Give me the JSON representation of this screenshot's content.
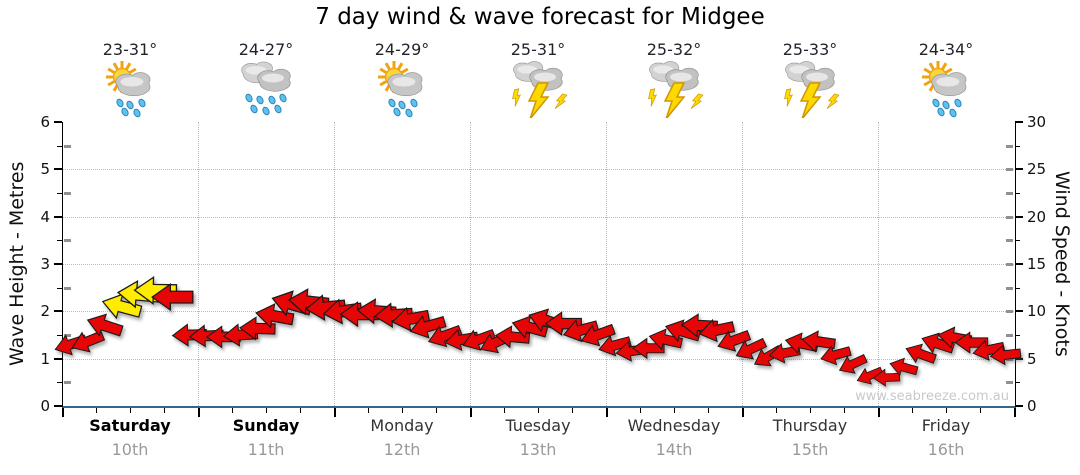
{
  "page": {
    "title": "7 day wind & wave forecast for Midgee",
    "watermark": "www.seabreeze.com.au"
  },
  "axes": {
    "left": {
      "label": "Wave Height - Metres",
      "ticks": [
        0,
        1,
        2,
        3,
        4,
        5,
        6
      ],
      "range": [
        0,
        6
      ]
    },
    "right": {
      "label": "Wind Speed - Knots",
      "ticks": [
        0,
        5,
        10,
        15,
        20,
        25,
        30
      ],
      "range": [
        0,
        30
      ]
    }
  },
  "days": [
    {
      "name": "Saturday",
      "date": "10th",
      "temp": "23-31°",
      "icon": "sun-cloud-rain",
      "weekend": true
    },
    {
      "name": "Sunday",
      "date": "11th",
      "temp": "24-27°",
      "icon": "clouds-rain",
      "weekend": true
    },
    {
      "name": "Monday",
      "date": "12th",
      "temp": "24-29°",
      "icon": "sun-cloud-rain",
      "weekend": false
    },
    {
      "name": "Tuesday",
      "date": "13th",
      "temp": "25-31°",
      "icon": "storm",
      "weekend": false
    },
    {
      "name": "Wednesday",
      "date": "14th",
      "temp": "25-32°",
      "icon": "storm",
      "weekend": false
    },
    {
      "name": "Thursday",
      "date": "15th",
      "temp": "25-33°",
      "icon": "storm",
      "weekend": false
    },
    {
      "name": "Friday",
      "date": "16th",
      "temp": "24-34°",
      "icon": "sun-cloud-rain",
      "weekend": false
    }
  ],
  "chart_data": {
    "type": "wind-arrows",
    "note": "3-hourly wind arrows, 8 per day. knots read on right axis; dir_deg is screen rotation of a right-pointing arrow (180 = pointing left/west, >180 tilted up, <180 tilted down).",
    "ylim_metres": [
      0,
      6
    ],
    "ylim_knots": [
      0,
      30
    ],
    "grid": {
      "horizontal_at_metres": [
        1,
        2,
        3,
        4,
        5
      ],
      "vertical_at_day_boundaries": true
    },
    "series": [
      {
        "day": "Saturday",
        "knots": [
          6.5,
          6.8,
          8.5,
          10.5,
          11.8,
          12.2,
          11.5,
          7.5
        ],
        "dir_deg": [
          162,
          158,
          198,
          195,
          185,
          181,
          180,
          178
        ],
        "colors": [
          "red",
          "red",
          "red",
          "yellow",
          "yellow",
          "yellow",
          "red",
          "red"
        ]
      },
      {
        "day": "Sunday",
        "knots": [
          7.4,
          7.3,
          7.5,
          8.2,
          9.5,
          10.8,
          11.0,
          10.4
        ],
        "dir_deg": [
          177,
          180,
          176,
          182,
          190,
          196,
          186,
          175
        ],
        "colors": [
          "red",
          "red",
          "red",
          "red",
          "red",
          "red",
          "red",
          "red"
        ]
      },
      {
        "day": "Monday",
        "knots": [
          10.0,
          9.7,
          10.0,
          9.6,
          9.2,
          8.4,
          7.4,
          7.0
        ],
        "dir_deg": [
          172,
          180,
          184,
          176,
          170,
          164,
          160,
          170
        ],
        "colors": [
          "red",
          "red",
          "red",
          "red",
          "red",
          "red",
          "red",
          "red"
        ]
      },
      {
        "day": "Tuesday",
        "knots": [
          7.0,
          6.7,
          7.3,
          8.3,
          9.0,
          8.7,
          8.0,
          7.5
        ],
        "dir_deg": [
          160,
          155,
          185,
          195,
          198,
          180,
          165,
          160
        ],
        "colors": [
          "red",
          "red",
          "red",
          "red",
          "red",
          "red",
          "red",
          "red"
        ]
      },
      {
        "day": "Wednesday",
        "knots": [
          6.4,
          5.8,
          6.1,
          7.0,
          7.9,
          8.5,
          8.0,
          6.9
        ],
        "dir_deg": [
          165,
          172,
          180,
          192,
          196,
          183,
          168,
          160
        ],
        "colors": [
          "red",
          "red",
          "red",
          "red",
          "red",
          "red",
          "red",
          "red"
        ]
      },
      {
        "day": "Thursday",
        "knots": [
          6.0,
          5.2,
          5.6,
          6.6,
          6.8,
          5.4,
          4.4,
          3.2
        ],
        "dir_deg": [
          155,
          150,
          170,
          192,
          188,
          165,
          155,
          158
        ],
        "colors": [
          "red",
          "red",
          "red",
          "red",
          "red",
          "red",
          "red",
          "red"
        ]
      },
      {
        "day": "Friday",
        "knots": [
          3.0,
          4.1,
          5.5,
          6.6,
          7.2,
          6.7,
          5.9,
          5.4
        ],
        "dir_deg": [
          178,
          195,
          200,
          198,
          190,
          180,
          168,
          174
        ],
        "colors": [
          "red",
          "red",
          "red",
          "red",
          "red",
          "red",
          "red",
          "red"
        ]
      }
    ],
    "palette": {
      "arrow_red": "#e60606",
      "arrow_yellow": "#ffec00",
      "arrow_outline": "#1a1a1a",
      "grid": "#bbbbbb",
      "axis": "#000000",
      "baseline_blue": "#336688",
      "date_gray": "#999999",
      "watermark_gray": "#c9c9c9"
    }
  }
}
